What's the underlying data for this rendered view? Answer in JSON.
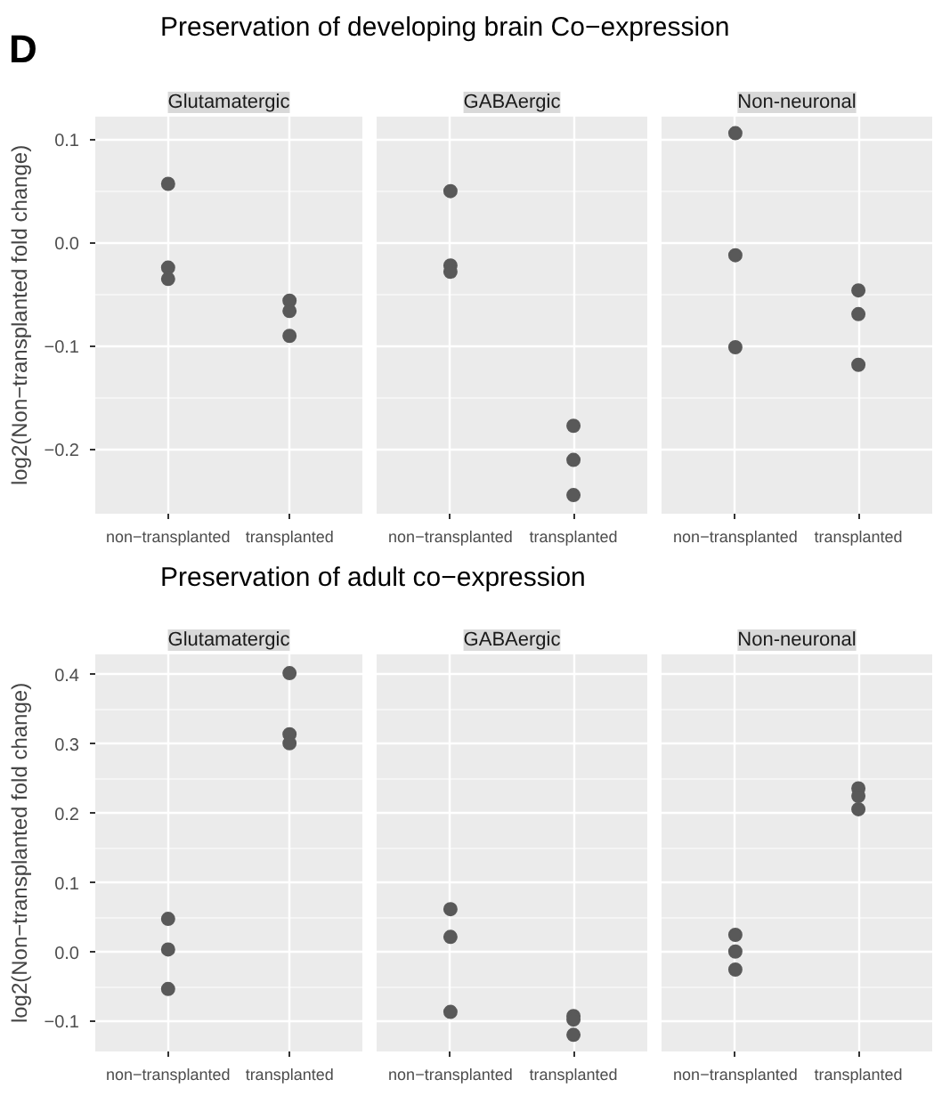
{
  "chart_data": [
    {
      "type": "scatter",
      "title": "Glutamatergic",
      "ylabel": "log2(Non−transplanted fold change)",
      "annotations": [
        "D",
        "Preservation of developing brain Co−expression"
      ],
      "categories": [
        "non−transplanted",
        "transplanted"
      ],
      "ylim": [
        -0.262,
        0.122
      ],
      "yticks": [
        0.1,
        {
          "value": 0,
          "label": "0.0"
        },
        -0.1,
        -0.2
      ],
      "grid": true,
      "marker": "circle",
      "tick_labels": "xy",
      "series": [
        {
          "color": "#595959",
          "x": [
            "non−transplanted",
            "non−transplanted",
            "non−transplanted",
            "transplanted",
            "transplanted",
            "transplanted"
          ],
          "values": [
            0.057,
            -0.024,
            -0.035,
            -0.056,
            -0.066,
            -0.09
          ]
        }
      ]
    },
    {
      "type": "scatter",
      "title": "GABAergic",
      "categories": [
        "non−transplanted",
        "transplanted"
      ],
      "ylim": [
        -0.262,
        0.122
      ],
      "yticks": [
        0.1,
        0,
        -0.1,
        -0.2
      ],
      "grid": true,
      "marker": "circle",
      "tick_labels": "x",
      "series": [
        {
          "color": "#595959",
          "x": [
            "non−transplanted",
            "non−transplanted",
            "non−transplanted",
            "transplanted",
            "transplanted",
            "transplanted"
          ],
          "values": [
            0.05,
            -0.022,
            -0.028,
            -0.177,
            -0.21,
            -0.244
          ]
        }
      ]
    },
    {
      "type": "scatter",
      "title": "Non-neuronal",
      "categories": [
        "non−transplanted",
        "transplanted"
      ],
      "ylim": [
        -0.262,
        0.122
      ],
      "yticks": [
        0.1,
        0,
        -0.1,
        -0.2
      ],
      "grid": true,
      "marker": "circle",
      "tick_labels": "x",
      "series": [
        {
          "color": "#595959",
          "x": [
            "non−transplanted",
            "non−transplanted",
            "non−transplanted",
            "transplanted",
            "transplanted",
            "transplanted"
          ],
          "values": [
            0.106,
            -0.012,
            -0.101,
            -0.046,
            -0.069,
            -0.118
          ]
        }
      ]
    },
    {
      "type": "scatter",
      "title": "Glutamatergic",
      "ylabel": "log2(Non−transplanted fold change)",
      "annotations": [
        "Preservation of adult co−expression"
      ],
      "categories": [
        "non−transplanted",
        "transplanted"
      ],
      "ylim": [
        -0.143,
        0.429
      ],
      "yticks": [
        0.4,
        0.3,
        0.2,
        0.1,
        {
          "value": 0,
          "label": "0.0"
        },
        -0.1
      ],
      "grid": true,
      "marker": "circle",
      "tick_labels": "xy",
      "series": [
        {
          "color": "#595959",
          "x": [
            "non−transplanted",
            "non−transplanted",
            "non−transplanted",
            "transplanted",
            "transplanted",
            "transplanted"
          ],
          "values": [
            0.048,
            0.004,
            -0.053,
            0.402,
            0.314,
            0.301
          ]
        }
      ]
    },
    {
      "type": "scatter",
      "title": "GABAergic",
      "categories": [
        "non−transplanted",
        "transplanted"
      ],
      "ylim": [
        -0.143,
        0.429
      ],
      "yticks": [
        0.4,
        0.3,
        0.2,
        0.1,
        0,
        -0.1
      ],
      "grid": true,
      "marker": "circle",
      "tick_labels": "x",
      "series": [
        {
          "color": "#595959",
          "x": [
            "non−transplanted",
            "non−transplanted",
            "non−transplanted",
            "transplanted",
            "transplanted",
            "transplanted"
          ],
          "values": [
            0.062,
            0.022,
            -0.086,
            -0.092,
            -0.097,
            -0.119
          ]
        }
      ]
    },
    {
      "type": "scatter",
      "title": "Non-neuronal",
      "categories": [
        "non−transplanted",
        "transplanted"
      ],
      "ylim": [
        -0.143,
        0.429
      ],
      "yticks": [
        0.4,
        0.3,
        0.2,
        0.1,
        0,
        -0.1
      ],
      "grid": true,
      "marker": "circle",
      "tick_labels": "x",
      "series": [
        {
          "color": "#595959",
          "x": [
            "non−transplanted",
            "non−transplanted",
            "non−transplanted",
            "transplanted",
            "transplanted",
            "transplanted"
          ],
          "values": [
            0.025,
            0.001,
            -0.025,
            0.236,
            0.225,
            0.206
          ]
        }
      ]
    }
  ]
}
